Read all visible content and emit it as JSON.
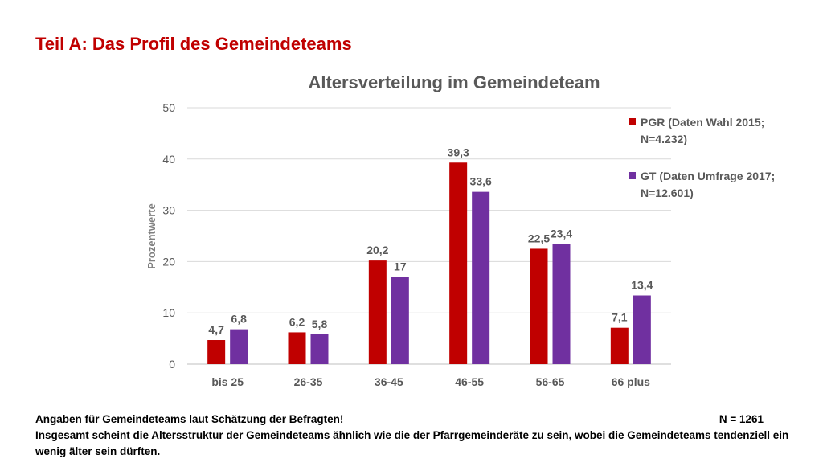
{
  "slide": {
    "title": "Teil A: Das Profil des Gemeindeteams"
  },
  "chart_data": {
    "type": "bar",
    "title": "Altersverteilung im Gemeindeteam",
    "xlabel": "",
    "ylabel": "Prozentwerte",
    "ylim": [
      0,
      50
    ],
    "yticks": [
      0,
      10,
      20,
      30,
      40,
      50
    ],
    "grid": true,
    "legend_position": "right",
    "categories": [
      "bis 25",
      "26-35",
      "36-45",
      "46-55",
      "56-65",
      "66 plus"
    ],
    "series": [
      {
        "name": "PGR (Daten Wahl 2015; N=4.232)",
        "legend_lines": [
          "PGR (Daten Wahl 2015;",
          "N=4.232)"
        ],
        "color": "#c00000",
        "values": [
          4.7,
          6.2,
          20.2,
          39.3,
          22.5,
          7.1
        ],
        "labels": [
          "4,7",
          "6,2",
          "20,2",
          "39,3",
          "22,5",
          "7,1"
        ]
      },
      {
        "name": "GT (Daten Umfrage 2017; N=12.601)",
        "legend_lines": [
          "GT (Daten Umfrage 2017;",
          "N=12.601)"
        ],
        "color": "#7030a0",
        "values": [
          6.8,
          5.8,
          17,
          33.6,
          23.4,
          13.4
        ],
        "labels": [
          "6,8",
          "5,8",
          "17",
          "33,6",
          "23,4",
          "13,4"
        ]
      }
    ]
  },
  "footer": {
    "line1": "Angaben für Gemeindeteams laut Schätzung der Befragten!",
    "n_label": "N = 1261",
    "line2": "Insgesamt scheint die Altersstruktur der Gemeindeteams  ähnlich wie die der Pfarrgemeinderäte zu sein, wobei die Gemeindeteams tendenziell ein wenig älter sein dürften."
  }
}
